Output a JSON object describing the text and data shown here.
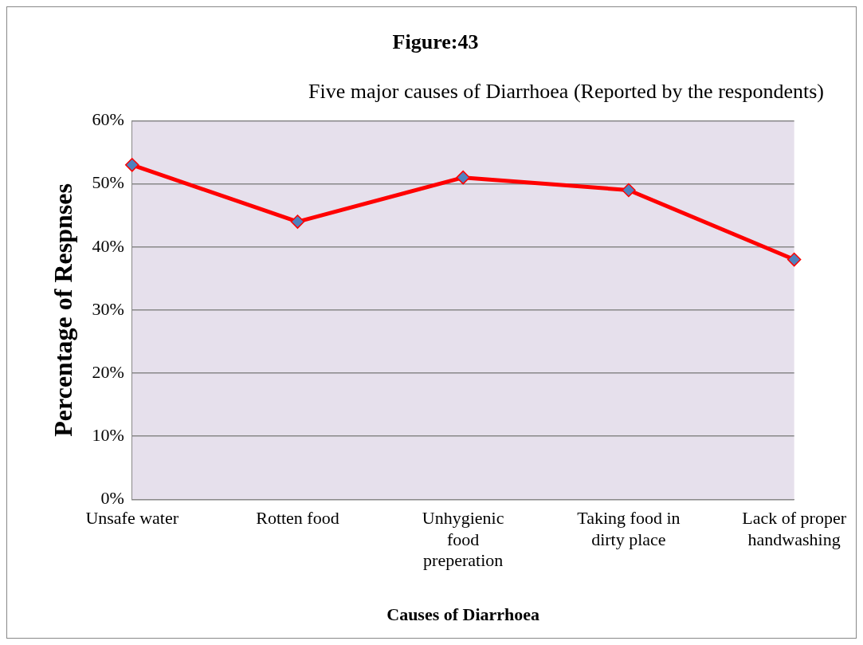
{
  "chart_data": {
    "type": "line",
    "title": "Figure:43",
    "subtitle": "Five major causes of Diarrhoea (Reported by the respondents)",
    "xlabel": "Causes of Diarrhoea",
    "ylabel": "Percentage of Respnses",
    "categories": [
      "Unsafe water",
      "Rotten food",
      "Unhygienic food preperation",
      "Taking food in dirty place",
      "Lack of proper handwashing"
    ],
    "series": [
      {
        "color": "#ff0000",
        "colors": [
          "#4f81bd",
          "#4f81bd",
          "#4f81bd",
          "#4f81bd",
          "#4f81bd"
        ],
        "values": [
          53,
          44,
          51,
          49,
          38
        ]
      }
    ],
    "ylim": [
      0,
      60
    ],
    "yticks": [
      {
        "value": 0,
        "label": "0%"
      },
      {
        "value": 10,
        "label": "10%"
      },
      {
        "value": 20,
        "label": "20%"
      },
      {
        "value": 30,
        "label": "30%"
      },
      {
        "value": 40,
        "label": "40%"
      },
      {
        "value": 50,
        "label": "50%"
      },
      {
        "value": 60,
        "label": "60%"
      }
    ],
    "grid": "y",
    "marker": "diamond",
    "line_style": "solid",
    "legend": false
  }
}
